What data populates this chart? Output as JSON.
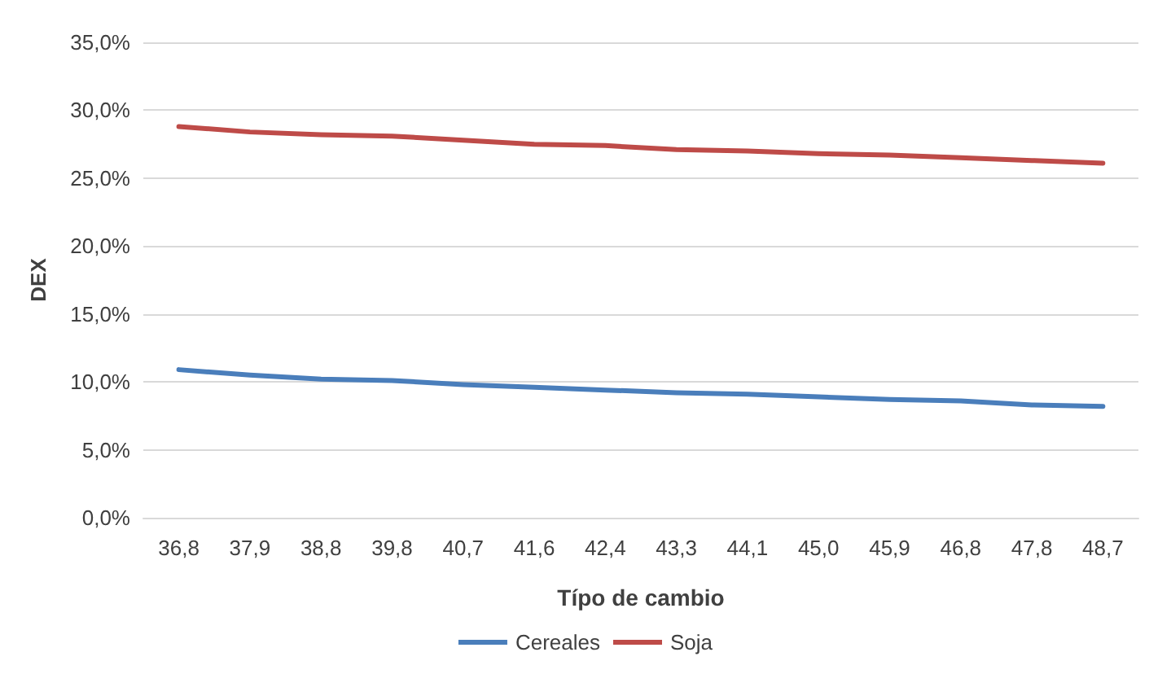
{
  "chart_data": {
    "type": "line",
    "xlabel": "Típo de cambio",
    "ylabel": "DEX",
    "categories": [
      "36,8",
      "37,9",
      "38,8",
      "39,8",
      "40,7",
      "41,6",
      "42,4",
      "43,3",
      "44,1",
      "45,0",
      "45,9",
      "46,8",
      "47,8",
      "48,7"
    ],
    "series": [
      {
        "name": "Cereales",
        "color": "#4a7ebb",
        "values": [
          10.9,
          10.5,
          10.2,
          10.1,
          9.8,
          9.6,
          9.4,
          9.2,
          9.1,
          8.9,
          8.7,
          8.6,
          8.3,
          8.2
        ]
      },
      {
        "name": "Soja",
        "color": "#be4b48",
        "values": [
          28.8,
          28.4,
          28.2,
          28.1,
          27.8,
          27.5,
          27.4,
          27.1,
          27.0,
          26.8,
          26.7,
          26.5,
          26.3,
          26.1
        ]
      }
    ],
    "ylim": [
      0,
      35
    ],
    "yticks": [
      {
        "value": 0,
        "label": "0,0%"
      },
      {
        "value": 5,
        "label": "5,0%"
      },
      {
        "value": 10,
        "label": "10,0%"
      },
      {
        "value": 15,
        "label": "15,0%"
      },
      {
        "value": 20,
        "label": "20,0%"
      },
      {
        "value": 25,
        "label": "25,0%"
      },
      {
        "value": 30,
        "label": "30,0%"
      },
      {
        "value": 35,
        "label": "35,0%"
      }
    ],
    "grid": "y",
    "legend": "bottom",
    "marker": "none",
    "line_style": "solid"
  }
}
